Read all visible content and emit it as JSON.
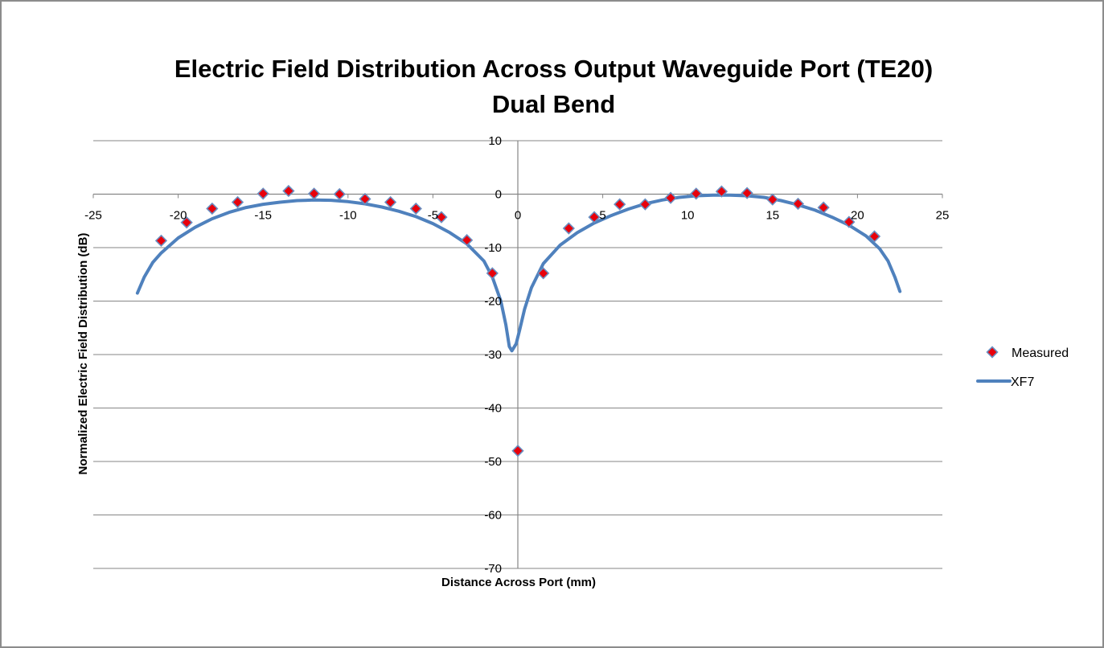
{
  "chart_data": {
    "type": "scatter",
    "title": "Electric Field Distribution Across Output Waveguide Port (TE20)",
    "subtitle": "Dual Bend",
    "xlabel": "Distance Across Port (mm)",
    "ylabel": "Normalized Electric Field Distribution (dB)",
    "xlim": [
      -25,
      25
    ],
    "ylim": [
      -70,
      10
    ],
    "x_ticks": [
      -25,
      -20,
      -15,
      -10,
      -5,
      0,
      5,
      10,
      15,
      20,
      25
    ],
    "x_tick_labels": [
      "-25",
      "-20",
      "-15",
      "-10",
      "-5",
      "0",
      "5",
      "10",
      "15",
      "20",
      "25"
    ],
    "y_ticks": [
      10,
      0,
      -10,
      -20,
      -30,
      -40,
      -50,
      -60,
      -70
    ],
    "y_tick_labels": [
      "10",
      "0",
      "-10",
      "-20",
      "-30",
      "-40",
      "-50",
      "-60",
      "-70"
    ],
    "grid": "horizontal",
    "legend_position": "right",
    "series": [
      {
        "name": "Measured",
        "kind": "marker",
        "marker": "diamond",
        "color": "#e8000b",
        "edge_color": "#6a8ec0",
        "points": [
          [
            -21.0,
            -8.7
          ],
          [
            -19.5,
            -5.3
          ],
          [
            -18.0,
            -2.7
          ],
          [
            -16.5,
            -1.5
          ],
          [
            -15.0,
            0.1
          ],
          [
            -13.5,
            0.6
          ],
          [
            -12.0,
            0.1
          ],
          [
            -10.5,
            0.0
          ],
          [
            -9.0,
            -0.9
          ],
          [
            -7.5,
            -1.5
          ],
          [
            -6.0,
            -2.7
          ],
          [
            -4.5,
            -4.3
          ],
          [
            -3.0,
            -8.6
          ],
          [
            -1.5,
            -14.8
          ],
          [
            0.0,
            -48.0
          ],
          [
            1.5,
            -14.8
          ],
          [
            3.0,
            -6.4
          ],
          [
            4.5,
            -4.3
          ],
          [
            6.0,
            -1.9
          ],
          [
            7.5,
            -1.9
          ],
          [
            9.0,
            -0.7
          ],
          [
            10.5,
            0.1
          ],
          [
            12.0,
            0.5
          ],
          [
            13.5,
            0.2
          ],
          [
            15.0,
            -1.0
          ],
          [
            16.5,
            -1.8
          ],
          [
            18.0,
            -2.5
          ],
          [
            19.5,
            -5.2
          ],
          [
            21.0,
            -7.9
          ]
        ]
      },
      {
        "name": "XF7",
        "kind": "line",
        "color": "#4f81bd",
        "points": [
          [
            -22.4,
            -18.5
          ],
          [
            -22.0,
            -15.5
          ],
          [
            -21.5,
            -12.8
          ],
          [
            -21.0,
            -11.0
          ],
          [
            -20.0,
            -8.2
          ],
          [
            -19.0,
            -6.2
          ],
          [
            -18.0,
            -4.6
          ],
          [
            -17.0,
            -3.4
          ],
          [
            -16.0,
            -2.5
          ],
          [
            -15.0,
            -1.9
          ],
          [
            -14.0,
            -1.5
          ],
          [
            -13.0,
            -1.2
          ],
          [
            -12.0,
            -1.1
          ],
          [
            -11.0,
            -1.15
          ],
          [
            -10.0,
            -1.4
          ],
          [
            -9.0,
            -1.8
          ],
          [
            -8.0,
            -2.4
          ],
          [
            -7.0,
            -3.2
          ],
          [
            -6.0,
            -4.2
          ],
          [
            -5.0,
            -5.5
          ],
          [
            -4.0,
            -7.2
          ],
          [
            -3.0,
            -9.3
          ],
          [
            -2.0,
            -12.5
          ],
          [
            -1.5,
            -15.5
          ],
          [
            -1.0,
            -20.0
          ],
          [
            -0.7,
            -24.5
          ],
          [
            -0.5,
            -28.5
          ],
          [
            -0.35,
            -29.3
          ],
          [
            -0.1,
            -28.0
          ],
          [
            0.1,
            -25.5
          ],
          [
            0.4,
            -21.5
          ],
          [
            0.8,
            -17.5
          ],
          [
            1.5,
            -13.0
          ],
          [
            2.5,
            -9.5
          ],
          [
            3.5,
            -7.2
          ],
          [
            4.5,
            -5.4
          ],
          [
            5.5,
            -4.0
          ],
          [
            6.5,
            -2.8
          ],
          [
            7.5,
            -1.8
          ],
          [
            8.5,
            -1.1
          ],
          [
            9.5,
            -0.6
          ],
          [
            10.5,
            -0.3
          ],
          [
            11.5,
            -0.2
          ],
          [
            12.5,
            -0.2
          ],
          [
            13.5,
            -0.3
          ],
          [
            14.5,
            -0.6
          ],
          [
            15.5,
            -1.2
          ],
          [
            16.5,
            -2.0
          ],
          [
            17.5,
            -3.0
          ],
          [
            18.5,
            -4.3
          ],
          [
            19.5,
            -5.8
          ],
          [
            20.5,
            -7.8
          ],
          [
            21.3,
            -10.2
          ],
          [
            21.8,
            -12.5
          ],
          [
            22.2,
            -15.5
          ],
          [
            22.5,
            -18.2
          ]
        ]
      }
    ]
  }
}
